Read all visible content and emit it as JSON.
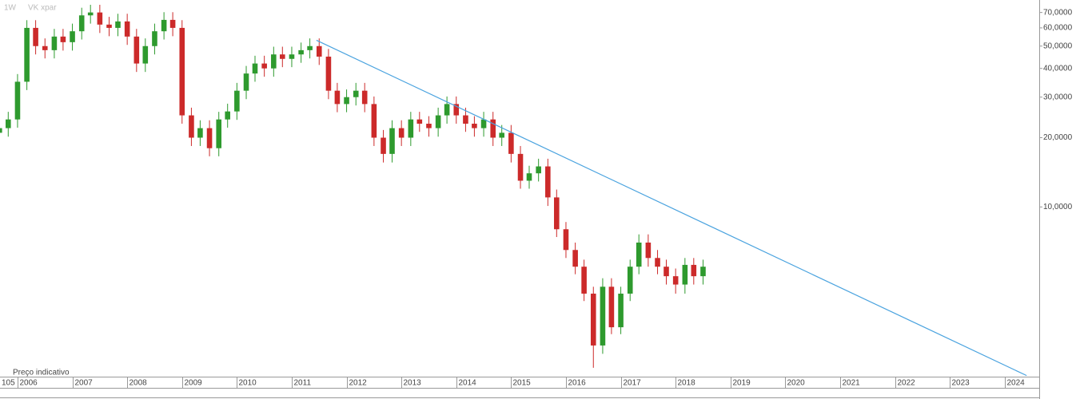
{
  "chart_data": {
    "type": "candlestick",
    "labels": [
      "1W",
      "VK xpar"
    ],
    "note": "Preço indicativo",
    "x_edge_label": "105",
    "log_y": true,
    "up_color": "#2e9a2e",
    "down_color": "#cc2a2a",
    "xlim": [
      2005.68,
      2024.63
    ],
    "ylim": [
      1.83,
      79.3
    ],
    "xticks": [
      2006,
      2007,
      2008,
      2009,
      2010,
      2011,
      2012,
      2013,
      2014,
      2015,
      2016,
      2017,
      2018,
      2019,
      2020,
      2021,
      2022,
      2023,
      2024
    ],
    "yticks": [
      {
        "value": 70,
        "label": "70,0000"
      },
      {
        "value": 60,
        "label": "60,0000"
      },
      {
        "value": 50,
        "label": "50,0000"
      },
      {
        "value": 40,
        "label": "40,0000"
      },
      {
        "value": 30,
        "label": "30,0000"
      },
      {
        "value": 20,
        "label": "20,0000"
      },
      {
        "value": 10,
        "label": "10,0000"
      }
    ],
    "trendline": {
      "color": "#4aa3df",
      "x": [
        2011.45,
        2024.4
      ],
      "y": [
        53,
        1.85
      ]
    },
    "x": [
      2005.67,
      2005.83,
      2006.0,
      2006.17,
      2006.33,
      2006.5,
      2006.67,
      2006.83,
      2007.0,
      2007.17,
      2007.33,
      2007.5,
      2007.67,
      2007.83,
      2008.0,
      2008.17,
      2008.33,
      2008.5,
      2008.67,
      2008.83,
      2009.0,
      2009.17,
      2009.33,
      2009.5,
      2009.67,
      2009.83,
      2010.0,
      2010.17,
      2010.33,
      2010.5,
      2010.67,
      2010.83,
      2011.0,
      2011.17,
      2011.33,
      2011.5,
      2011.67,
      2011.83,
      2012.0,
      2012.17,
      2012.33,
      2012.5,
      2012.67,
      2012.83,
      2013.0,
      2013.17,
      2013.33,
      2013.5,
      2013.67,
      2013.83,
      2014.0,
      2014.17,
      2014.33,
      2014.5,
      2014.67,
      2014.83,
      2015.0,
      2015.17,
      2015.33,
      2015.5,
      2015.67,
      2015.83,
      2016.0,
      2016.17,
      2016.33,
      2016.5,
      2016.67,
      2016.83,
      2017.0,
      2017.17,
      2017.33,
      2017.5,
      2017.67,
      2017.83,
      2018.0,
      2018.17,
      2018.33,
      2018.5
    ],
    "open": [
      21,
      22,
      24,
      35,
      60,
      50,
      48,
      55,
      52,
      58,
      68,
      70,
      62,
      60,
      64,
      55,
      42,
      50,
      58,
      65,
      60,
      25,
      20,
      22,
      18,
      24,
      26,
      32,
      38,
      42,
      40,
      46,
      44,
      46,
      48,
      50,
      45,
      32,
      28,
      30,
      32,
      28,
      20,
      17,
      22,
      20,
      24,
      23,
      22,
      25,
      28,
      25,
      23,
      22,
      24,
      20,
      21,
      17,
      13,
      14,
      15,
      11,
      8,
      6.5,
      5.5,
      4.2,
      2.5,
      4.5,
      3,
      4.2,
      5.5,
      7,
      6,
      5.5,
      5,
      4.6,
      5.6,
      5
    ],
    "high": [
      23.8,
      25.9,
      37.8,
      64.8,
      64.8,
      54,
      59.4,
      59.4,
      62.6,
      73.4,
      75.6,
      75.6,
      67,
      69.1,
      69.1,
      59.4,
      54,
      62.6,
      70.2,
      70.2,
      64.8,
      27,
      23.8,
      23.8,
      25.9,
      28.1,
      34.6,
      41,
      45.4,
      45.4,
      49.7,
      49.7,
      49.7,
      51.8,
      54,
      54,
      48.6,
      34.6,
      32.4,
      34.6,
      34.6,
      30.2,
      21.6,
      23.8,
      23.8,
      25.9,
      25.9,
      24.8,
      27,
      30.2,
      30.2,
      27,
      24.8,
      25.9,
      25.9,
      22.7,
      22.7,
      18.4,
      15.1,
      16.2,
      16.2,
      11.9,
      8.6,
      7,
      5.9,
      4.5,
      4.9,
      4.9,
      4.5,
      5.9,
      7.6,
      7.6,
      6.5,
      5.9,
      5.4,
      6,
      6,
      5.9
    ],
    "low": [
      19.3,
      20.2,
      22.1,
      32.2,
      46,
      44.2,
      44.2,
      47.8,
      47.8,
      53.4,
      62.6,
      57,
      55.2,
      55.2,
      50.6,
      38.6,
      38.6,
      46,
      53.4,
      55.2,
      23,
      18.4,
      18.4,
      16.6,
      16.6,
      22.1,
      23.9,
      29.4,
      35,
      36.8,
      36.8,
      40.5,
      40.5,
      42.3,
      44.2,
      41.4,
      29.4,
      25.8,
      25.8,
      27.6,
      25.8,
      18.4,
      15.6,
      15.6,
      18.4,
      18.4,
      21.2,
      20.2,
      20.2,
      23,
      23,
      21.2,
      20.2,
      20.2,
      18.4,
      18.4,
      15.6,
      12,
      12,
      12.9,
      10.1,
      7.4,
      6,
      5.1,
      3.9,
      2,
      2.3,
      2.8,
      2.8,
      3.9,
      5.1,
      5.5,
      5.1,
      4.6,
      4.2,
      4.2,
      4.6,
      4.6
    ],
    "close": [
      22,
      24,
      35,
      60,
      50,
      48,
      55,
      52,
      58,
      68,
      70,
      62,
      60,
      64,
      55,
      42,
      50,
      58,
      65,
      60,
      25,
      20,
      22,
      18,
      24,
      26,
      32,
      38,
      42,
      40,
      46,
      44,
      46,
      48,
      50,
      45,
      32,
      28,
      30,
      32,
      28,
      20,
      17,
      22,
      20,
      24,
      23,
      22,
      25,
      28,
      25,
      23,
      22,
      24,
      20,
      21,
      17,
      13,
      14,
      15,
      11,
      8,
      6.5,
      5.5,
      4.2,
      2.5,
      4.5,
      3,
      4.2,
      5.5,
      7,
      6,
      5.5,
      5,
      4.6,
      5.6,
      5,
      5.5
    ]
  }
}
